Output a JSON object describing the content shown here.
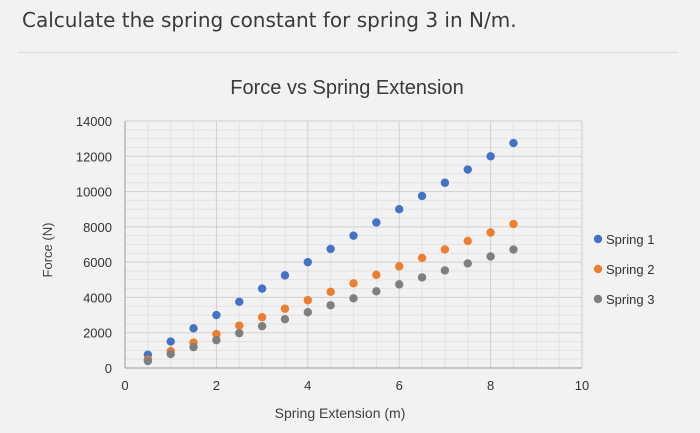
{
  "question": "Calculate the spring constant for spring 3 in N/m.",
  "chart_data": {
    "type": "scatter",
    "title": "Force vs Spring Extension",
    "xlabel": "Spring Extension (m)",
    "ylabel": "Force (N)",
    "xlim": [
      0,
      10
    ],
    "ylim": [
      0,
      14000
    ],
    "x_ticks": [
      "0",
      "2",
      "4",
      "6",
      "8",
      "10"
    ],
    "y_ticks": [
      "0",
      "2000",
      "4000",
      "6000",
      "8000",
      "10000",
      "12000",
      "14000"
    ],
    "grid": true,
    "legend_position": "right",
    "series": [
      {
        "name": "Spring 1",
        "color": "#4472c4",
        "points": [
          [
            0.5,
            750
          ],
          [
            1,
            1500
          ],
          [
            1.5,
            2250
          ],
          [
            2,
            3000
          ],
          [
            2.5,
            3750
          ],
          [
            3,
            4500
          ],
          [
            3.5,
            5250
          ],
          [
            4,
            6000
          ],
          [
            4.5,
            6750
          ],
          [
            5,
            7500
          ],
          [
            5.5,
            8250
          ],
          [
            6,
            9000
          ],
          [
            6.5,
            9750
          ],
          [
            7,
            10500
          ],
          [
            7.5,
            11250
          ],
          [
            8,
            12000
          ],
          [
            8.5,
            12750
          ]
        ]
      },
      {
        "name": "Spring 2",
        "color": "#ed7d31",
        "points": [
          [
            0.5,
            480
          ],
          [
            1,
            960
          ],
          [
            1.5,
            1440
          ],
          [
            2,
            1920
          ],
          [
            2.5,
            2400
          ],
          [
            3,
            2880
          ],
          [
            3.5,
            3360
          ],
          [
            4,
            3840
          ],
          [
            4.5,
            4320
          ],
          [
            5,
            4800
          ],
          [
            5.5,
            5280
          ],
          [
            6,
            5760
          ],
          [
            6.5,
            6240
          ],
          [
            7,
            6720
          ],
          [
            7.5,
            7200
          ],
          [
            8,
            7680
          ],
          [
            8.5,
            8160
          ]
        ]
      },
      {
        "name": "Spring 3",
        "color": "#7f7f7f",
        "points": [
          [
            0.5,
            395
          ],
          [
            1,
            790
          ],
          [
            1.5,
            1185
          ],
          [
            2,
            1580
          ],
          [
            2.5,
            1975
          ],
          [
            3,
            2370
          ],
          [
            3.5,
            2765
          ],
          [
            4,
            3160
          ],
          [
            4.5,
            3555
          ],
          [
            5,
            3950
          ],
          [
            5.5,
            4345
          ],
          [
            6,
            4740
          ],
          [
            6.5,
            5135
          ],
          [
            7,
            5530
          ],
          [
            7.5,
            5925
          ],
          [
            8,
            6320
          ],
          [
            8.5,
            6715
          ]
        ]
      }
    ]
  }
}
